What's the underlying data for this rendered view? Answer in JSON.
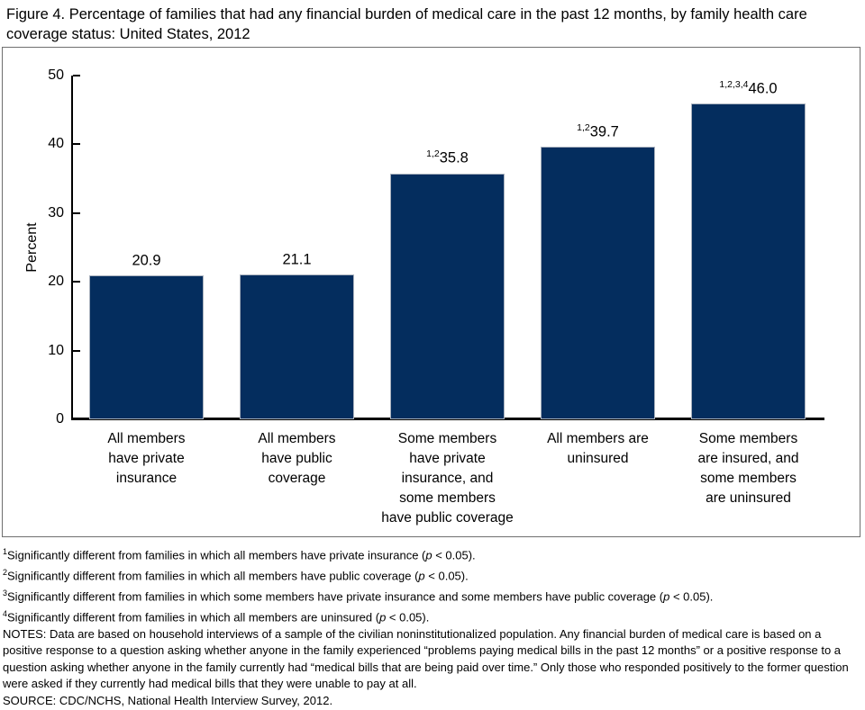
{
  "figure": {
    "title_display": "Figure 4. Percentage of families that had any financial burden of medical care in the past 12 months, by family health care\ncoverage status: United States, 2012"
  },
  "chart_data": {
    "type": "bar",
    "title": "Figure 4. Percentage of families that had any financial burden of medical care in the past 12 months, by family health care coverage status: United States, 2012",
    "xlabel": "",
    "ylabel": "Percent",
    "ylim": [
      0,
      50
    ],
    "yticks": [
      0,
      10,
      20,
      30,
      40,
      50
    ],
    "grid": false,
    "legend": "none",
    "bar_color": "#042d5e",
    "categories": [
      "All members have private insurance",
      "All members have public coverage",
      "Some members have private insurance, and some members have public coverage",
      "All members are uninsured",
      "Some members are insured, and some members are uninsured"
    ],
    "values": [
      20.9,
      21.1,
      35.8,
      39.7,
      46.0
    ],
    "data_labels": [
      {
        "sup": "",
        "value": "20.9"
      },
      {
        "sup": "",
        "value": "21.1"
      },
      {
        "sup": "1,2",
        "value": "35.8"
      },
      {
        "sup": "1,2",
        "value": "39.7"
      },
      {
        "sup": "1,2,3,4",
        "value": "46.0"
      }
    ],
    "category_display": [
      "All members\nhave private\ninsurance",
      "All members\nhave public\ncoverage",
      "Some members\nhave private\ninsurance, and\nsome members\nhave public coverage",
      "All members are\nuninsured",
      "Some members\nare insured, and\nsome members\nare uninsured"
    ]
  },
  "footnotes": [
    {
      "sup": "1",
      "pre": "Significantly different from families in which all members have private insurance (",
      "p": "p",
      "post": " < 0.05)."
    },
    {
      "sup": "2",
      "pre": "Significantly different from families in which all members have public coverage (",
      "p": "p",
      "post": " < 0.05)."
    },
    {
      "sup": "3",
      "pre": "Significantly different from families in which some members have private insurance and some members have public coverage (",
      "p": "p",
      "post": " < 0.05)."
    },
    {
      "sup": "4",
      "pre": "Significantly different from families in which all members are uninsured (",
      "p": "p",
      "post": " < 0.05)."
    }
  ],
  "notes": "NOTES: Data are based on household interviews of a sample of the civilian noninstitutionalized population. Any financial burden of medical care is based on a\npositive response to a question asking whether anyone in the family experienced “problems paying medical bills in the past 12 months” or a positive response to a\nquestion asking whether anyone in the family currently had “medical bills that are being paid over time.” Only those who responded positively to the former question\nwere asked if they currently had medical bills that they were unable to pay at all.",
  "source": "SOURCE: CDC/NCHS, National Health Interview Survey, 2012."
}
